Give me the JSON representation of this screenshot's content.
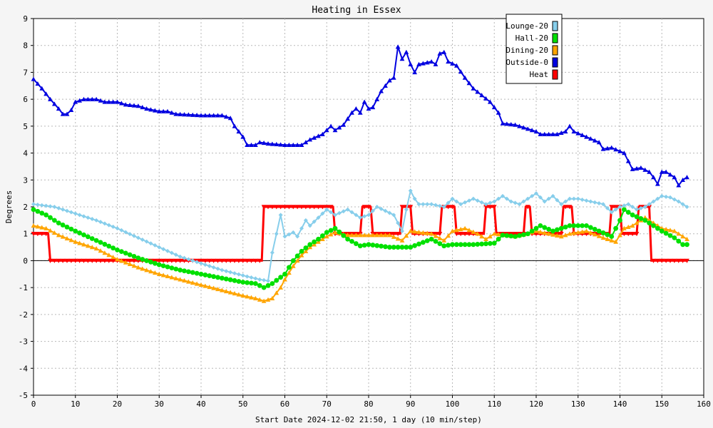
{
  "chart_data": {
    "type": "line",
    "title": "Heating in Essex",
    "xlabel": "Start Date 2024-12-02 21:50, 1 day (10 min/step)",
    "ylabel": "Degrees",
    "xlim": [
      0,
      160
    ],
    "ylim": [
      -5,
      9
    ],
    "x_ticks": [
      0,
      10,
      20,
      30,
      40,
      50,
      60,
      70,
      80,
      90,
      100,
      110,
      120,
      130,
      140,
      150,
      160
    ],
    "y_ticks": [
      -5,
      -4,
      -3,
      -2,
      -1,
      0,
      1,
      2,
      3,
      4,
      5,
      6,
      7,
      8,
      9
    ],
    "grid": true,
    "legend_position": "top-right",
    "series": [
      {
        "name": "Lounge-20",
        "color": "#87ceeb",
        "marker": "diamond",
        "points": [
          [
            0,
            2.1
          ],
          [
            5,
            2.0
          ],
          [
            10,
            1.75
          ],
          [
            15,
            1.5
          ],
          [
            20,
            1.2
          ],
          [
            25,
            0.85
          ],
          [
            30,
            0.5
          ],
          [
            35,
            0.15
          ],
          [
            40,
            -0.1
          ],
          [
            45,
            -0.35
          ],
          [
            50,
            -0.55
          ],
          [
            54,
            -0.7
          ],
          [
            56,
            -0.75
          ],
          [
            57,
            0.3
          ],
          [
            59,
            1.7
          ],
          [
            60,
            0.9
          ],
          [
            62,
            1.05
          ],
          [
            63,
            0.9
          ],
          [
            65,
            1.5
          ],
          [
            66,
            1.3
          ],
          [
            68,
            1.6
          ],
          [
            70,
            1.9
          ],
          [
            72,
            1.7
          ],
          [
            75,
            1.9
          ],
          [
            78,
            1.6
          ],
          [
            80,
            1.7
          ],
          [
            82,
            2.0
          ],
          [
            86,
            1.7
          ],
          [
            88,
            1.1
          ],
          [
            89,
            1.9
          ],
          [
            90,
            2.6
          ],
          [
            91,
            2.3
          ],
          [
            92,
            2.1
          ],
          [
            95,
            2.1
          ],
          [
            98,
            2.0
          ],
          [
            100,
            2.3
          ],
          [
            102,
            2.1
          ],
          [
            105,
            2.3
          ],
          [
            108,
            2.1
          ],
          [
            110,
            2.2
          ],
          [
            112,
            2.4
          ],
          [
            114,
            2.2
          ],
          [
            116,
            2.1
          ],
          [
            118,
            2.3
          ],
          [
            120,
            2.5
          ],
          [
            122,
            2.2
          ],
          [
            124,
            2.4
          ],
          [
            126,
            2.1
          ],
          [
            128,
            2.3
          ],
          [
            130,
            2.3
          ],
          [
            133,
            2.2
          ],
          [
            136,
            2.1
          ],
          [
            138,
            1.8
          ],
          [
            140,
            2.0
          ],
          [
            142,
            2.1
          ],
          [
            144,
            1.9
          ],
          [
            146,
            2.0
          ],
          [
            148,
            2.2
          ],
          [
            150,
            2.4
          ],
          [
            152,
            2.35
          ],
          [
            154,
            2.2
          ],
          [
            156,
            2.0
          ]
        ]
      },
      {
        "name": "Hall-20",
        "color": "#00e000",
        "marker": "circle",
        "points": [
          [
            0,
            1.9
          ],
          [
            3,
            1.7
          ],
          [
            6,
            1.4
          ],
          [
            10,
            1.1
          ],
          [
            15,
            0.75
          ],
          [
            20,
            0.4
          ],
          [
            25,
            0.1
          ],
          [
            30,
            -0.15
          ],
          [
            35,
            -0.35
          ],
          [
            40,
            -0.5
          ],
          [
            45,
            -0.65
          ],
          [
            50,
            -0.8
          ],
          [
            53,
            -0.85
          ],
          [
            55,
            -1.0
          ],
          [
            57,
            -0.85
          ],
          [
            60,
            -0.5
          ],
          [
            62,
            0.0
          ],
          [
            64,
            0.35
          ],
          [
            66,
            0.6
          ],
          [
            68,
            0.8
          ],
          [
            70,
            1.05
          ],
          [
            72,
            1.2
          ],
          [
            75,
            0.8
          ],
          [
            78,
            0.55
          ],
          [
            80,
            0.6
          ],
          [
            85,
            0.5
          ],
          [
            90,
            0.5
          ],
          [
            95,
            0.8
          ],
          [
            98,
            0.55
          ],
          [
            100,
            0.6
          ],
          [
            105,
            0.6
          ],
          [
            110,
            0.65
          ],
          [
            112,
            0.95
          ],
          [
            115,
            0.9
          ],
          [
            118,
            1.0
          ],
          [
            121,
            1.3
          ],
          [
            124,
            1.1
          ],
          [
            128,
            1.3
          ],
          [
            132,
            1.3
          ],
          [
            135,
            1.1
          ],
          [
            138,
            0.9
          ],
          [
            140,
            1.5
          ],
          [
            141,
            1.9
          ],
          [
            143,
            1.7
          ],
          [
            146,
            1.5
          ],
          [
            148,
            1.3
          ],
          [
            150,
            1.1
          ],
          [
            153,
            0.85
          ],
          [
            155,
            0.6
          ],
          [
            156,
            0.6
          ]
        ]
      },
      {
        "name": "Dining-20",
        "color": "#ffa500",
        "marker": "triangle",
        "points": [
          [
            0,
            1.3
          ],
          [
            3,
            1.2
          ],
          [
            6,
            0.95
          ],
          [
            10,
            0.7
          ],
          [
            15,
            0.45
          ],
          [
            20,
            0.05
          ],
          [
            25,
            -0.25
          ],
          [
            30,
            -0.5
          ],
          [
            35,
            -0.7
          ],
          [
            40,
            -0.9
          ],
          [
            45,
            -1.1
          ],
          [
            50,
            -1.3
          ],
          [
            53,
            -1.4
          ],
          [
            55,
            -1.5
          ],
          [
            57,
            -1.4
          ],
          [
            59,
            -1.0
          ],
          [
            60,
            -0.7
          ],
          [
            62,
            -0.2
          ],
          [
            64,
            0.2
          ],
          [
            66,
            0.5
          ],
          [
            68,
            0.7
          ],
          [
            70,
            0.9
          ],
          [
            72,
            1.05
          ],
          [
            75,
            0.95
          ],
          [
            78,
            0.95
          ],
          [
            80,
            0.95
          ],
          [
            85,
            0.95
          ],
          [
            88,
            0.75
          ],
          [
            90,
            1.1
          ],
          [
            95,
            1.0
          ],
          [
            98,
            0.75
          ],
          [
            100,
            1.1
          ],
          [
            103,
            1.2
          ],
          [
            106,
            1.0
          ],
          [
            108,
            0.8
          ],
          [
            110,
            1.0
          ],
          [
            115,
            0.9
          ],
          [
            118,
            1.0
          ],
          [
            120,
            1.1
          ],
          [
            123,
            1.0
          ],
          [
            126,
            0.9
          ],
          [
            128,
            1.0
          ],
          [
            132,
            1.1
          ],
          [
            136,
            0.85
          ],
          [
            139,
            0.7
          ],
          [
            141,
            1.2
          ],
          [
            143,
            1.3
          ],
          [
            146,
            1.6
          ],
          [
            148,
            1.4
          ],
          [
            150,
            1.2
          ],
          [
            153,
            1.1
          ],
          [
            156,
            0.8
          ]
        ]
      },
      {
        "name": "Outside-0",
        "color": "#0000e0",
        "marker": "triangle",
        "points": [
          [
            0,
            6.75
          ],
          [
            2,
            6.4
          ],
          [
            4,
            6.0
          ],
          [
            6,
            5.65
          ],
          [
            7,
            5.45
          ],
          [
            8,
            5.45
          ],
          [
            9,
            5.6
          ],
          [
            10,
            5.9
          ],
          [
            12,
            6.0
          ],
          [
            15,
            6.0
          ],
          [
            17,
            5.9
          ],
          [
            20,
            5.9
          ],
          [
            22,
            5.8
          ],
          [
            25,
            5.75
          ],
          [
            27,
            5.65
          ],
          [
            30,
            5.55
          ],
          [
            32,
            5.55
          ],
          [
            34,
            5.45
          ],
          [
            40,
            5.4
          ],
          [
            45,
            5.4
          ],
          [
            47,
            5.3
          ],
          [
            48,
            5.0
          ],
          [
            50,
            4.6
          ],
          [
            51,
            4.3
          ],
          [
            53,
            4.3
          ],
          [
            54,
            4.4
          ],
          [
            56,
            4.35
          ],
          [
            60,
            4.3
          ],
          [
            64,
            4.3
          ],
          [
            66,
            4.5
          ],
          [
            69,
            4.7
          ],
          [
            71,
            5.0
          ],
          [
            72,
            4.85
          ],
          [
            74,
            5.05
          ],
          [
            76,
            5.5
          ],
          [
            77,
            5.65
          ],
          [
            78,
            5.5
          ],
          [
            79,
            5.9
          ],
          [
            80,
            5.65
          ],
          [
            81,
            5.7
          ],
          [
            83,
            6.3
          ],
          [
            84,
            6.5
          ],
          [
            85,
            6.7
          ],
          [
            86,
            6.8
          ],
          [
            87,
            7.95
          ],
          [
            88,
            7.5
          ],
          [
            89,
            7.75
          ],
          [
            90,
            7.3
          ],
          [
            91,
            7.0
          ],
          [
            92,
            7.3
          ],
          [
            95,
            7.4
          ],
          [
            96,
            7.3
          ],
          [
            97,
            7.7
          ],
          [
            98,
            7.75
          ],
          [
            99,
            7.4
          ],
          [
            101,
            7.25
          ],
          [
            103,
            6.8
          ],
          [
            105,
            6.4
          ],
          [
            107,
            6.15
          ],
          [
            109,
            5.9
          ],
          [
            111,
            5.5
          ],
          [
            112,
            5.1
          ],
          [
            115,
            5.05
          ],
          [
            117,
            4.95
          ],
          [
            120,
            4.8
          ],
          [
            121,
            4.7
          ],
          [
            125,
            4.7
          ],
          [
            127,
            4.8
          ],
          [
            128,
            5.0
          ],
          [
            129,
            4.8
          ],
          [
            132,
            4.6
          ],
          [
            135,
            4.4
          ],
          [
            136,
            4.15
          ],
          [
            138,
            4.2
          ],
          [
            141,
            4.0
          ],
          [
            143,
            3.4
          ],
          [
            145,
            3.45
          ],
          [
            147,
            3.3
          ],
          [
            148,
            3.1
          ],
          [
            149,
            2.85
          ],
          [
            150,
            3.3
          ],
          [
            151,
            3.3
          ],
          [
            153,
            3.1
          ],
          [
            154,
            2.8
          ],
          [
            155,
            3.0
          ],
          [
            156,
            3.1
          ]
        ]
      },
      {
        "name": "Heat",
        "color": "#ff0000",
        "marker": "triangle-down",
        "steps": [
          [
            0,
            1
          ],
          [
            3.5,
            1
          ],
          [
            4,
            0
          ],
          [
            54.5,
            0
          ],
          [
            55,
            2
          ],
          [
            71.5,
            2
          ],
          [
            72,
            1
          ],
          [
            78,
            1
          ],
          [
            78.5,
            2
          ],
          [
            80.5,
            2
          ],
          [
            81,
            1
          ],
          [
            87.5,
            1
          ],
          [
            88,
            2
          ],
          [
            90,
            2
          ],
          [
            90.5,
            1
          ],
          [
            97,
            1
          ],
          [
            97.5,
            2
          ],
          [
            100.5,
            2
          ],
          [
            101,
            1
          ],
          [
            107.5,
            1
          ],
          [
            108,
            2
          ],
          [
            110,
            2
          ],
          [
            110.5,
            1
          ],
          [
            117,
            1
          ],
          [
            117.5,
            2
          ],
          [
            118.5,
            2
          ],
          [
            119,
            1
          ],
          [
            126,
            1
          ],
          [
            126.5,
            2
          ],
          [
            128.5,
            2
          ],
          [
            129,
            1
          ],
          [
            137.5,
            1
          ],
          [
            138,
            2
          ],
          [
            140,
            2
          ],
          [
            140.5,
            1
          ],
          [
            144,
            1
          ],
          [
            144.5,
            2
          ],
          [
            147,
            2
          ],
          [
            147.5,
            0
          ],
          [
            156,
            0
          ]
        ]
      }
    ]
  }
}
